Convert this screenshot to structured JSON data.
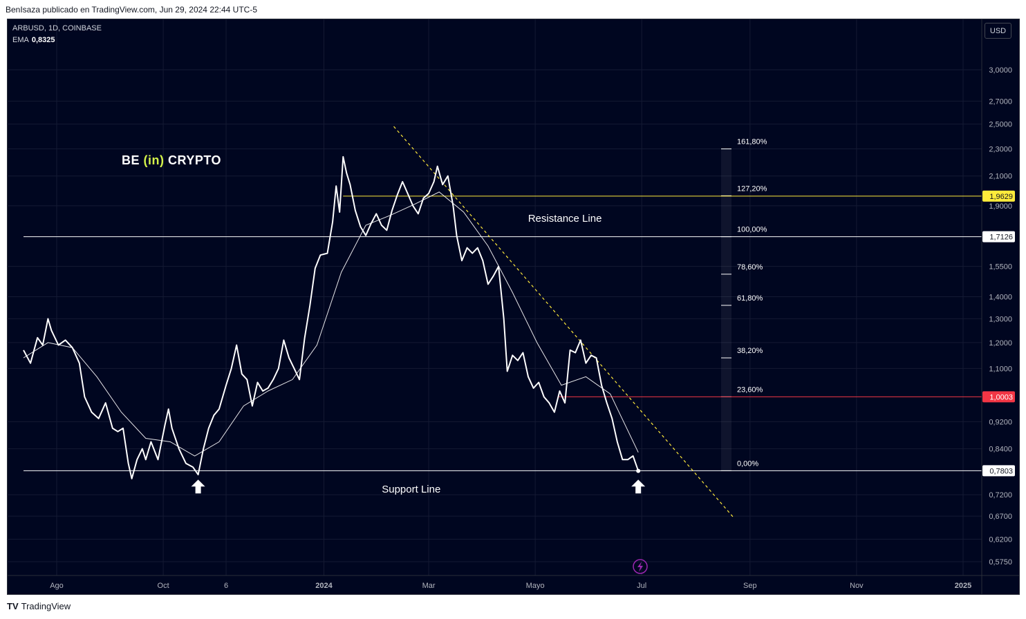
{
  "caption": "BenIsaza publicado en TradingView.com, Jun 29, 2024 22:44 UTC-5",
  "symbol": "ARBUSD, 1D, COINBASE",
  "ema_label": "EMA",
  "ema_value": "0,8325",
  "currency": "USD",
  "brand": {
    "left": "BE ",
    "middle": "(in)",
    "right": " CRYPTO"
  },
  "footer": {
    "mark": "TV",
    "text": "TradingView"
  },
  "colors": {
    "background": "#000620",
    "price": "#ffffff",
    "resistance": "#ffeb3b",
    "support_red": "#f23645",
    "trendline": "#ffeb3b"
  },
  "chart_data": {
    "type": "line",
    "series": [
      {
        "name": "",
        "values": []
      }
    ],
    "price_axis_ticks": [
      "3,0000",
      "2,7000",
      "2,5000",
      "2,3000",
      "2,1000",
      "1,9000",
      "1,5500",
      "1,4000",
      "1,3000",
      "1,2000",
      "1,1000",
      "0,9200",
      "0,8400",
      "0,7200",
      "0,6700",
      "0,6200",
      "0,5750"
    ],
    "price_axis_values": [
      3.0,
      2.7,
      2.5,
      2.3,
      2.1,
      1.9,
      1.55,
      1.4,
      1.3,
      1.2,
      1.1,
      0.92,
      0.84,
      0.72,
      0.67,
      0.62,
      0.575
    ],
    "time_axis_ticks": [
      "Ago",
      "Oct",
      "6",
      "2024",
      "Mar",
      "Mayo",
      "Jul",
      "Sep",
      "Nov",
      "2025"
    ],
    "time_axis_dates": [
      "2023-08-01",
      "2023-10-01",
      "2023-11-06",
      "2024-01-01",
      "2024-03-01",
      "2024-05-01",
      "2024-07-01",
      "2024-09-01",
      "2024-11-01",
      "2025-01-01"
    ],
    "y_scale": "log",
    "price_series": [
      [
        "2023-07-13",
        1.17
      ],
      [
        "2023-07-17",
        1.12
      ],
      [
        "2023-07-21",
        1.22
      ],
      [
        "2023-07-24",
        1.19
      ],
      [
        "2023-07-27",
        1.3
      ],
      [
        "2023-07-29",
        1.25
      ],
      [
        "2023-08-02",
        1.19
      ],
      [
        "2023-08-06",
        1.21
      ],
      [
        "2023-08-10",
        1.18
      ],
      [
        "2023-08-14",
        1.12
      ],
      [
        "2023-08-17",
        1.0
      ],
      [
        "2023-08-21",
        0.95
      ],
      [
        "2023-08-25",
        0.93
      ],
      [
        "2023-08-29",
        0.98
      ],
      [
        "2023-09-02",
        0.9
      ],
      [
        "2023-09-05",
        0.89
      ],
      [
        "2023-09-08",
        0.9
      ],
      [
        "2023-09-11",
        0.8
      ],
      [
        "2023-09-13",
        0.76
      ],
      [
        "2023-09-16",
        0.81
      ],
      [
        "2023-09-19",
        0.84
      ],
      [
        "2023-09-21",
        0.81
      ],
      [
        "2023-09-24",
        0.86
      ],
      [
        "2023-09-28",
        0.81
      ],
      [
        "2023-10-02",
        0.91
      ],
      [
        "2023-10-04",
        0.96
      ],
      [
        "2023-10-06",
        0.9
      ],
      [
        "2023-10-10",
        0.84
      ],
      [
        "2023-10-14",
        0.8
      ],
      [
        "2023-10-18",
        0.79
      ],
      [
        "2023-10-21",
        0.77
      ],
      [
        "2023-10-24",
        0.84
      ],
      [
        "2023-10-27",
        0.9
      ],
      [
        "2023-10-30",
        0.94
      ],
      [
        "2023-11-02",
        0.96
      ],
      [
        "2023-11-06",
        1.04
      ],
      [
        "2023-11-09",
        1.1
      ],
      [
        "2023-11-12",
        1.19
      ],
      [
        "2023-11-15",
        1.08
      ],
      [
        "2023-11-18",
        1.06
      ],
      [
        "2023-11-21",
        0.97
      ],
      [
        "2023-11-24",
        1.05
      ],
      [
        "2023-11-27",
        1.02
      ],
      [
        "2023-11-30",
        1.03
      ],
      [
        "2023-12-03",
        1.06
      ],
      [
        "2023-12-06",
        1.1
      ],
      [
        "2023-12-09",
        1.21
      ],
      [
        "2023-12-12",
        1.14
      ],
      [
        "2023-12-15",
        1.1
      ],
      [
        "2023-12-18",
        1.06
      ],
      [
        "2023-12-21",
        1.22
      ],
      [
        "2023-12-24",
        1.36
      ],
      [
        "2023-12-27",
        1.54
      ],
      [
        "2023-12-30",
        1.61
      ],
      [
        "2024-01-03",
        1.62
      ],
      [
        "2024-01-06",
        1.8
      ],
      [
        "2024-01-08",
        2.03
      ],
      [
        "2024-01-10",
        1.86
      ],
      [
        "2024-01-12",
        2.24
      ],
      [
        "2024-01-14",
        2.12
      ],
      [
        "2024-01-16",
        2.04
      ],
      [
        "2024-01-19",
        1.87
      ],
      [
        "2024-01-22",
        1.77
      ],
      [
        "2024-01-25",
        1.72
      ],
      [
        "2024-01-28",
        1.79
      ],
      [
        "2024-01-31",
        1.85
      ],
      [
        "2024-02-03",
        1.78
      ],
      [
        "2024-02-06",
        1.75
      ],
      [
        "2024-02-09",
        1.87
      ],
      [
        "2024-02-12",
        1.97
      ],
      [
        "2024-02-15",
        2.06
      ],
      [
        "2024-02-18",
        1.98
      ],
      [
        "2024-02-21",
        1.9
      ],
      [
        "2024-02-24",
        1.85
      ],
      [
        "2024-02-27",
        1.95
      ],
      [
        "2024-03-01",
        1.98
      ],
      [
        "2024-03-04",
        2.06
      ],
      [
        "2024-03-06",
        2.17
      ],
      [
        "2024-03-09",
        2.04
      ],
      [
        "2024-03-12",
        2.1
      ],
      [
        "2024-03-15",
        1.9
      ],
      [
        "2024-03-17",
        1.72
      ],
      [
        "2024-03-20",
        1.58
      ],
      [
        "2024-03-23",
        1.65
      ],
      [
        "2024-03-26",
        1.62
      ],
      [
        "2024-03-29",
        1.65
      ],
      [
        "2024-04-01",
        1.58
      ],
      [
        "2024-04-04",
        1.46
      ],
      [
        "2024-04-07",
        1.5
      ],
      [
        "2024-04-10",
        1.55
      ],
      [
        "2024-04-13",
        1.3
      ],
      [
        "2024-04-15",
        1.09
      ],
      [
        "2024-04-18",
        1.15
      ],
      [
        "2024-04-21",
        1.13
      ],
      [
        "2024-04-24",
        1.16
      ],
      [
        "2024-04-27",
        1.07
      ],
      [
        "2024-04-30",
        1.03
      ],
      [
        "2024-05-03",
        1.05
      ],
      [
        "2024-05-06",
        1.0
      ],
      [
        "2024-05-09",
        0.98
      ],
      [
        "2024-05-12",
        0.95
      ],
      [
        "2024-05-15",
        1.02
      ],
      [
        "2024-05-18",
        0.98
      ],
      [
        "2024-05-21",
        1.17
      ],
      [
        "2024-05-24",
        1.16
      ],
      [
        "2024-05-27",
        1.21
      ],
      [
        "2024-05-30",
        1.12
      ],
      [
        "2024-06-02",
        1.15
      ],
      [
        "2024-06-05",
        1.14
      ],
      [
        "2024-06-08",
        1.04
      ],
      [
        "2024-06-11",
        0.98
      ],
      [
        "2024-06-14",
        0.93
      ],
      [
        "2024-06-17",
        0.86
      ],
      [
        "2024-06-20",
        0.81
      ],
      [
        "2024-06-23",
        0.81
      ],
      [
        "2024-06-26",
        0.82
      ],
      [
        "2024-06-29",
        0.78
      ]
    ],
    "ema_series": [
      [
        "2023-07-13",
        1.14
      ],
      [
        "2023-07-27",
        1.2
      ],
      [
        "2023-08-10",
        1.18
      ],
      [
        "2023-08-24",
        1.07
      ],
      [
        "2023-09-07",
        0.95
      ],
      [
        "2023-09-21",
        0.87
      ],
      [
        "2023-10-05",
        0.86
      ],
      [
        "2023-10-19",
        0.82
      ],
      [
        "2023-11-02",
        0.86
      ],
      [
        "2023-11-16",
        0.97
      ],
      [
        "2023-11-30",
        1.02
      ],
      [
        "2023-12-14",
        1.06
      ],
      [
        "2023-12-28",
        1.19
      ],
      [
        "2024-01-11",
        1.52
      ],
      [
        "2024-01-25",
        1.78
      ],
      [
        "2024-02-08",
        1.84
      ],
      [
        "2024-02-22",
        1.91
      ],
      [
        "2024-03-07",
        1.99
      ],
      [
        "2024-03-21",
        1.86
      ],
      [
        "2024-04-04",
        1.66
      ],
      [
        "2024-04-18",
        1.42
      ],
      [
        "2024-05-02",
        1.2
      ],
      [
        "2024-05-16",
        1.04
      ],
      [
        "2024-05-30",
        1.07
      ],
      [
        "2024-06-13",
        1.01
      ],
      [
        "2024-06-29",
        0.83
      ]
    ],
    "horizontal_lines": [
      {
        "price": 1.9629,
        "label": "1,9629",
        "color": "#ffeb3b",
        "start_date": "2024-01-12"
      },
      {
        "price": 1.7126,
        "label": "1,7126",
        "color": "#ffffff",
        "start_date": "2023-07-13"
      },
      {
        "price": 1.0003,
        "label": "1,0003",
        "color": "#f23645",
        "start_date": "2024-05-14"
      },
      {
        "price": 0.7803,
        "label": "0,7803",
        "color": "#ffffff",
        "start_date": "2023-07-13"
      }
    ],
    "trendline": {
      "from": [
        "2024-02-10",
        2.48
      ],
      "to": [
        "2024-08-23",
        0.665
      ]
    },
    "fibonacci": [
      {
        "label": "161,80%",
        "price": 2.3
      },
      {
        "label": "127,20%",
        "price": 1.965
      },
      {
        "label": "100,00%",
        "price": 1.7126
      },
      {
        "label": "78,60%",
        "price": 1.51
      },
      {
        "label": "61,80%",
        "price": 1.36
      },
      {
        "label": "38,20%",
        "price": 1.14
      },
      {
        "label": "23,60%",
        "price": 1.0003
      },
      {
        "label": "0,00%",
        "price": 0.7803
      }
    ],
    "annotations": [
      {
        "text": "Resistance Line",
        "date": "2024-05-18",
        "price": 1.8
      },
      {
        "text": "Support Line",
        "date": "2024-02-20",
        "price": 0.725
      }
    ],
    "arrows": [
      {
        "date": "2023-10-21",
        "price": 0.74
      },
      {
        "date": "2024-06-29",
        "price": 0.74
      }
    ]
  }
}
